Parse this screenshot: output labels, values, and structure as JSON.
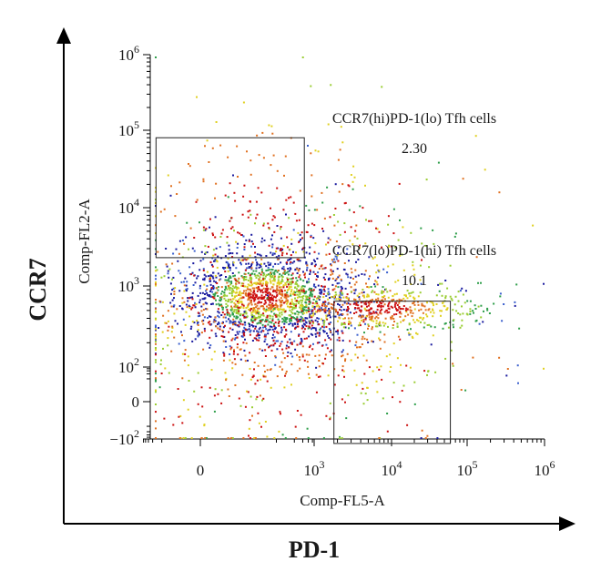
{
  "chart_data": {
    "type": "scatter",
    "subtype": "flow-cytometry-density-dotplot",
    "outer_xlabel": "PD-1",
    "outer_ylabel": "CCR7",
    "xlabel": "Comp-FL5-A",
    "ylabel": "Comp-FL2-A",
    "x_scale": "biexponential",
    "y_scale": "biexponential",
    "x_ticks": [
      {
        "value": 0,
        "base": "0",
        "exp": ""
      },
      {
        "value": 1000,
        "base": "10",
        "exp": "3"
      },
      {
        "value": 10000,
        "base": "10",
        "exp": "4"
      },
      {
        "value": 100000,
        "base": "10",
        "exp": "5"
      },
      {
        "value": 1000000,
        "base": "10",
        "exp": "6"
      }
    ],
    "y_ticks": [
      {
        "value": -100,
        "base": "−10",
        "exp": "2"
      },
      {
        "value": 0,
        "base": "0",
        "exp": ""
      },
      {
        "value": 100,
        "base": "10",
        "exp": "2"
      },
      {
        "value": 1000,
        "base": "10",
        "exp": "3"
      },
      {
        "value": 10000,
        "base": "10",
        "exp": "4"
      },
      {
        "value": 100000,
        "base": "10",
        "exp": "5"
      },
      {
        "value": 1000000,
        "base": "10",
        "exp": "6"
      }
    ],
    "gates": [
      {
        "label": "CCR7(hi)PD-1(lo) Tfh cells",
        "value": "2.30",
        "x_range": [
          -200,
          550
        ],
        "y_range": [
          2300,
          80000
        ]
      },
      {
        "label": "CCR7(lo)PD-1(hi) Tfh cells",
        "value": "10.1",
        "x_range": [
          1800,
          60000
        ],
        "y_range": [
          -130,
          650
        ]
      }
    ],
    "density_colors": [
      "#1a1a9e",
      "#3a5fcd",
      "#2e9e4a",
      "#9acd32",
      "#e0d020",
      "#e07020",
      "#cc1010"
    ]
  }
}
